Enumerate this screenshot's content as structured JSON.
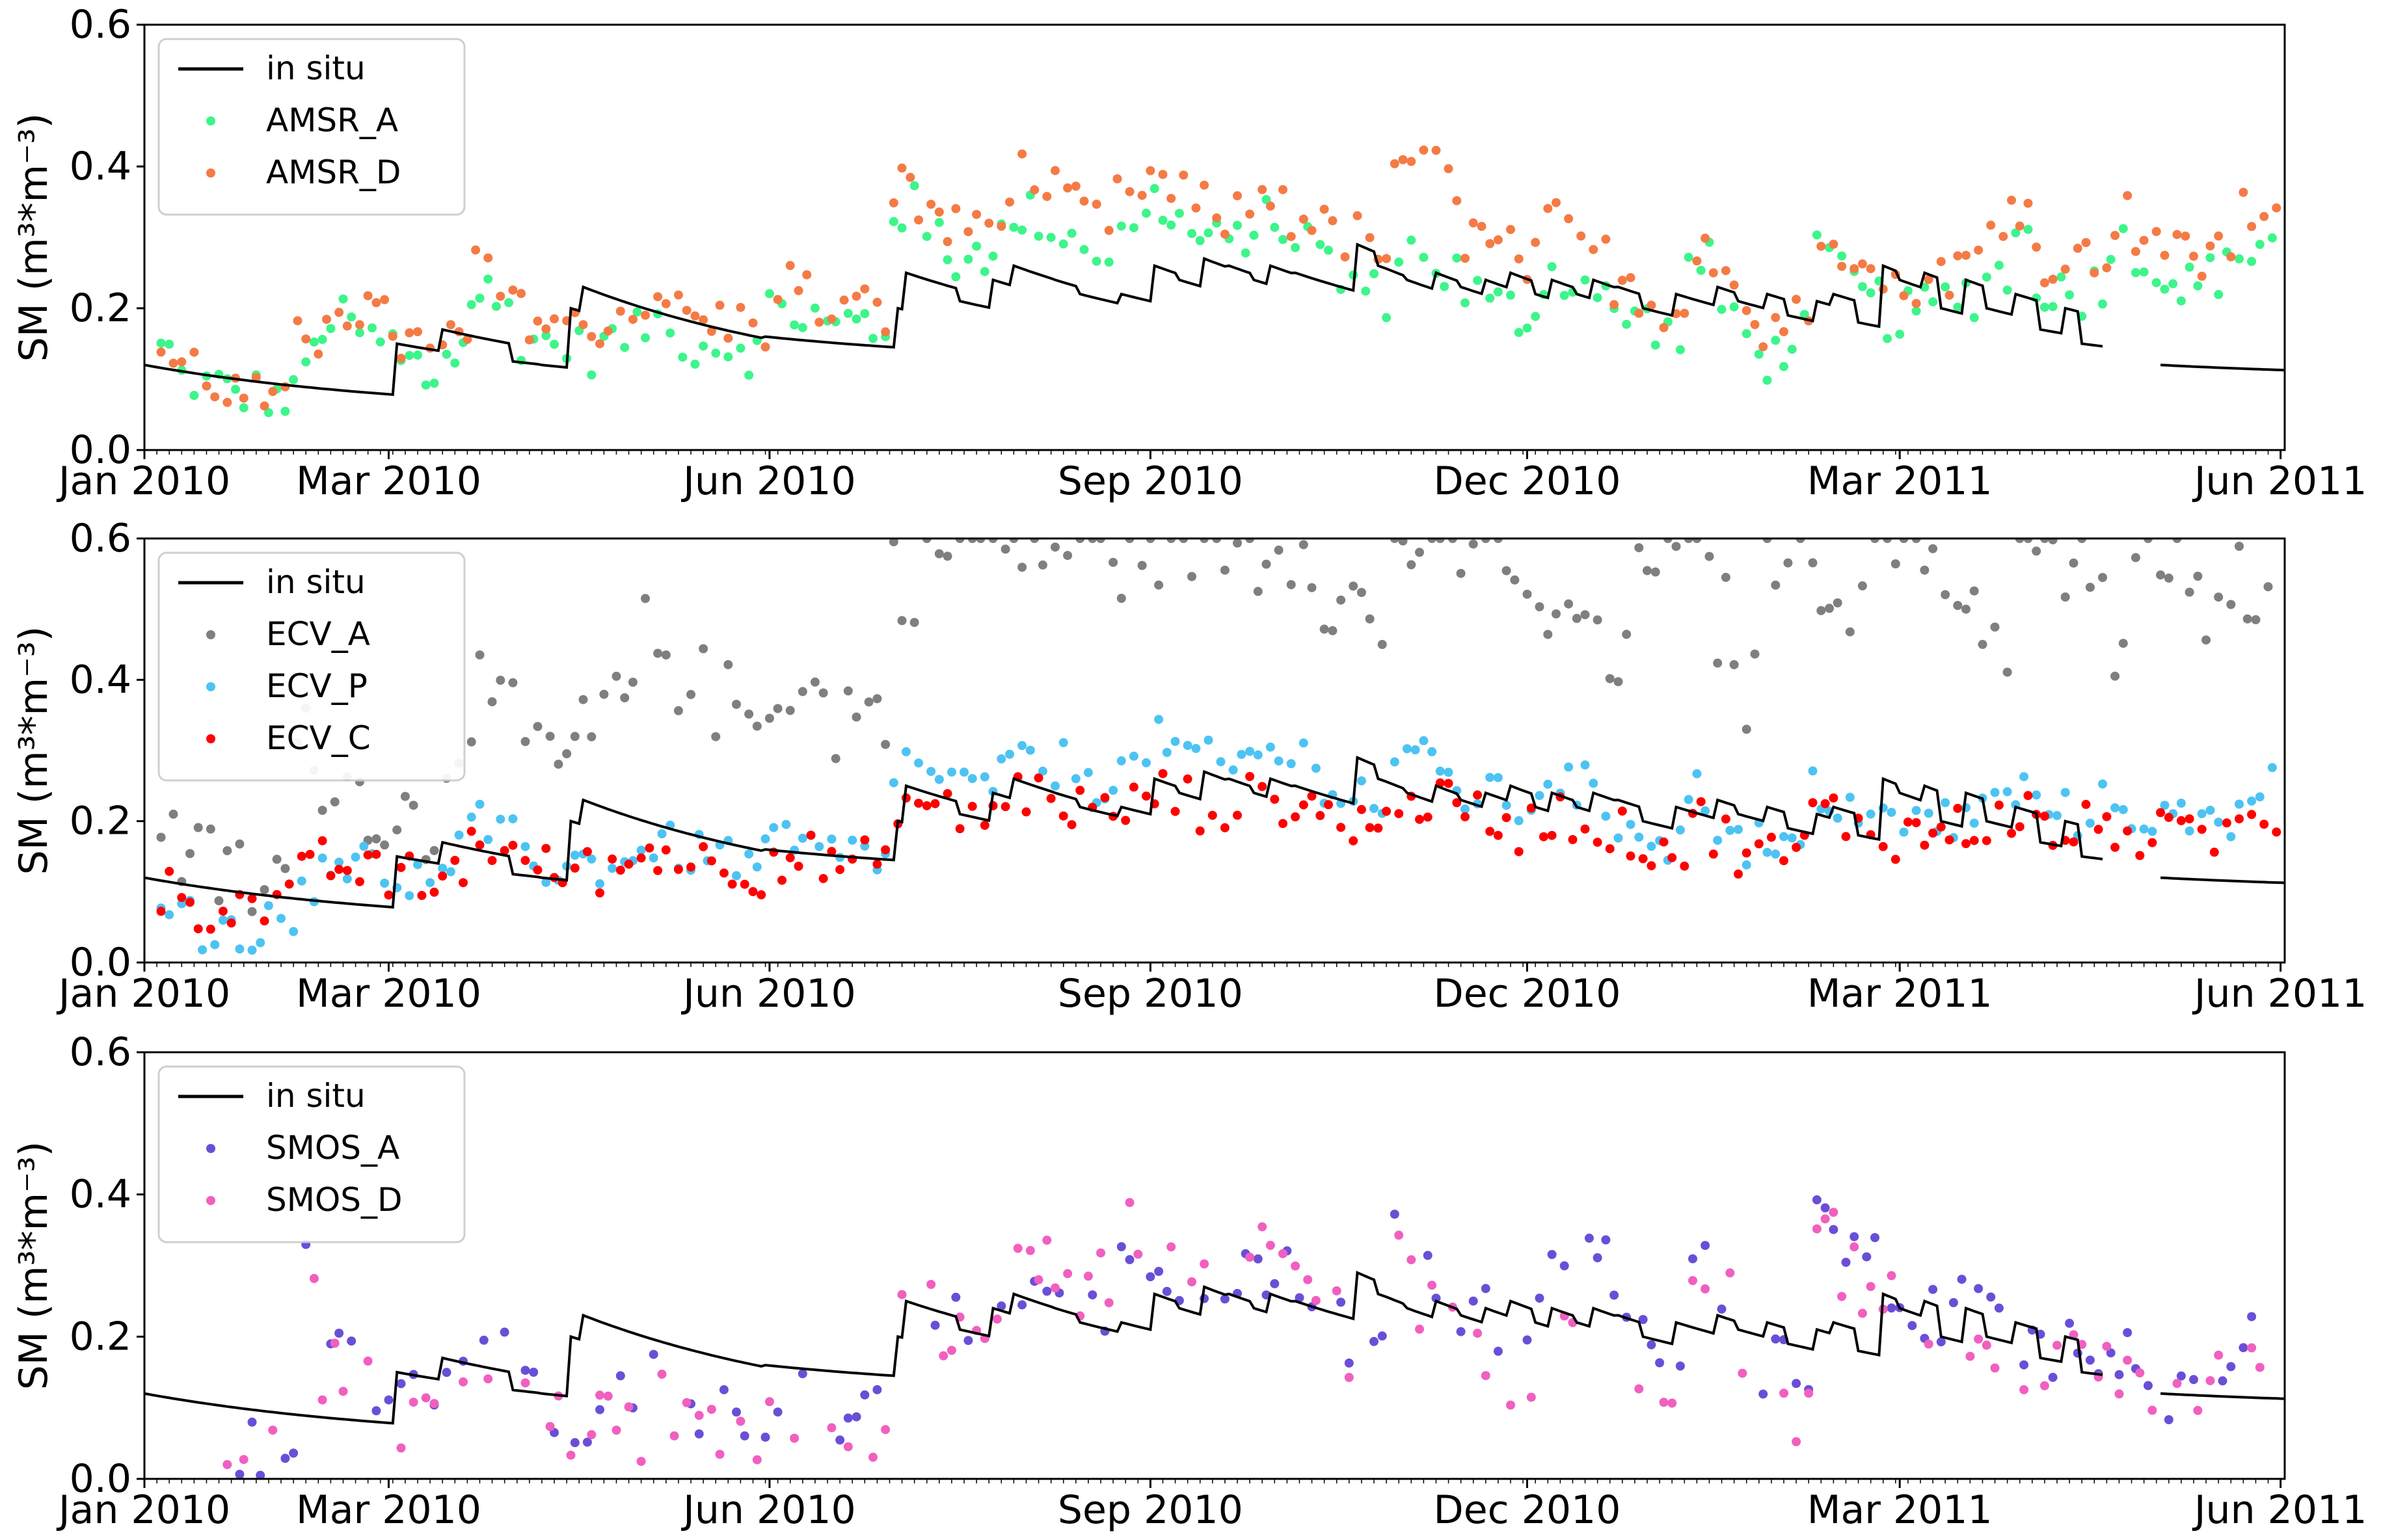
{
  "chart_data": [
    {
      "type": "line+scatter",
      "ylabel": "SM (m³*m⁻³)",
      "ylim": [
        0,
        0.6
      ],
      "yticks": [
        "0.0",
        "0.2",
        "0.4",
        "0.6"
      ],
      "xticks": [
        "Jan 2010",
        "Mar 2010",
        "Jun 2010",
        "Sep 2010",
        "Dec 2010",
        "Mar 2011",
        "Jun 2011"
      ],
      "x_range_days": [
        0,
        517
      ],
      "legend": {
        "position": "upper-left"
      },
      "series": [
        {
          "name": "in situ",
          "kind": "line",
          "color": "#000000"
        },
        {
          "name": "AMSR_A",
          "kind": "scatter",
          "color": "#3df58a",
          "samples": [
            0.14,
            0.1,
            0.09,
            0.08,
            0.08,
            0.07,
            0.13,
            0.18,
            0.17,
            0.15,
            0.12,
            0.1,
            0.14,
            0.22,
            0.2,
            0.16,
            0.15,
            0.14,
            0.15,
            0.16,
            0.18,
            0.16,
            0.15,
            0.15,
            0.14,
            0.2,
            0.19,
            0.17,
            0.18,
            0.17,
            0.34,
            0.3,
            0.27,
            0.28,
            0.3,
            0.33,
            0.31,
            0.3,
            0.28,
            0.3,
            0.35,
            0.32,
            0.3,
            0.29,
            0.31,
            0.32,
            0.3,
            0.27,
            0.24,
            0.22,
            0.28,
            0.27,
            0.25,
            0.22,
            0.2,
            0.19,
            0.25,
            0.24,
            0.21,
            0.19,
            0.18,
            0.16,
            0.26,
            0.2,
            0.15,
            0.13,
            0.17,
            0.27,
            0.24,
            0.21,
            0.19,
            0.2,
            0.21,
            0.22,
            0.25,
            0.3,
            0.23,
            0.22,
            0.24,
            0.29,
            0.27,
            0.24,
            0.23,
            0.25,
            0.28,
            0.3
          ]
        },
        {
          "name": "AMSR_D",
          "kind": "scatter",
          "color": "#f47b45",
          "samples": [
            0.14,
            0.12,
            0.1,
            0.08,
            0.07,
            0.06,
            0.15,
            0.21,
            0.2,
            0.18,
            0.15,
            0.13,
            0.16,
            0.25,
            0.22,
            0.19,
            0.18,
            0.17,
            0.18,
            0.19,
            0.22,
            0.19,
            0.18,
            0.18,
            0.17,
            0.24,
            0.22,
            0.2,
            0.2,
            0.19,
            0.37,
            0.34,
            0.31,
            0.32,
            0.35,
            0.39,
            0.36,
            0.34,
            0.32,
            0.35,
            0.38,
            0.36,
            0.34,
            0.33,
            0.35,
            0.36,
            0.33,
            0.31,
            0.3,
            0.28,
            0.38,
            0.42,
            0.37,
            0.3,
            0.28,
            0.26,
            0.32,
            0.3,
            0.27,
            0.24,
            0.22,
            0.2,
            0.3,
            0.25,
            0.19,
            0.16,
            0.21,
            0.32,
            0.29,
            0.25,
            0.22,
            0.24,
            0.25,
            0.27,
            0.3,
            0.35,
            0.27,
            0.26,
            0.28,
            0.33,
            0.31,
            0.28,
            0.27,
            0.29,
            0.33,
            0.35
          ]
        }
      ]
    },
    {
      "type": "line+scatter",
      "ylabel": "SM (m³*m⁻³)",
      "ylim": [
        0,
        0.6
      ],
      "yticks": [
        "0.0",
        "0.2",
        "0.4",
        "0.6"
      ],
      "xticks": [
        "Jan 2010",
        "Mar 2010",
        "Jun 2010",
        "Sep 2010",
        "Dec 2010",
        "Mar 2011",
        "Jun 2011"
      ],
      "x_range_days": [
        0,
        517
      ],
      "legend": {
        "position": "upper-left"
      },
      "series": [
        {
          "name": "in situ",
          "kind": "line",
          "color": "#000000"
        },
        {
          "name": "ECV_A",
          "kind": "scatter",
          "color": "#7f7f7f",
          "samples": [
            0.22,
            0.16,
            0.13,
            0.12,
            0.11,
            0.12,
            0.3,
            0.28,
            0.24,
            0.22,
            0.2,
            0.19,
            0.32,
            0.38,
            0.33,
            0.3,
            0.28,
            0.31,
            0.35,
            0.38,
            0.45,
            0.42,
            0.38,
            0.36,
            0.34,
            0.4,
            0.38,
            0.35,
            0.36,
            0.35,
            0.55,
            0.58,
            0.6,
            0.6,
            0.59,
            0.6,
            0.58,
            0.6,
            0.6,
            0.57,
            0.6,
            0.59,
            0.6,
            0.6,
            0.58,
            0.6,
            0.6,
            0.53,
            0.5,
            0.48,
            0.6,
            0.6,
            0.58,
            0.6,
            0.6,
            0.55,
            0.45,
            0.5,
            0.42,
            0.4,
            0.6,
            0.58,
            0.55,
            0.48,
            0.38,
            0.6,
            0.6,
            0.56,
            0.52,
            0.6,
            0.6,
            0.58,
            0.55,
            0.5,
            0.47,
            0.6,
            0.58,
            0.55,
            0.5,
            0.45,
            0.6,
            0.55,
            0.5,
            0.46,
            0.55,
            0.58
          ]
        },
        {
          "name": "ECV_P",
          "kind": "scatter",
          "color": "#4dc3f2",
          "samples": [
            0.1,
            0.06,
            0.05,
            0.05,
            0.05,
            0.05,
            0.12,
            0.15,
            0.14,
            0.13,
            0.12,
            0.11,
            0.15,
            0.19,
            0.17,
            0.15,
            0.14,
            0.14,
            0.14,
            0.15,
            0.17,
            0.16,
            0.15,
            0.15,
            0.14,
            0.17,
            0.16,
            0.15,
            0.15,
            0.14,
            0.28,
            0.27,
            0.25,
            0.24,
            0.26,
            0.29,
            0.28,
            0.27,
            0.26,
            0.27,
            0.31,
            0.3,
            0.28,
            0.27,
            0.29,
            0.3,
            0.29,
            0.26,
            0.24,
            0.22,
            0.3,
            0.28,
            0.26,
            0.24,
            0.23,
            0.22,
            0.26,
            0.25,
            0.22,
            0.2,
            0.19,
            0.17,
            0.24,
            0.2,
            0.17,
            0.15,
            0.17,
            0.24,
            0.22,
            0.2,
            0.19,
            0.2,
            0.2,
            0.21,
            0.23,
            0.24,
            0.22,
            0.21,
            0.22,
            0.22,
            0.21,
            0.2,
            0.19,
            0.2,
            0.24,
            0.26
          ]
        },
        {
          "name": "ECV_C",
          "kind": "scatter",
          "color": "#ff0000",
          "samples": [
            0.1,
            0.09,
            0.08,
            0.08,
            0.08,
            0.08,
            0.12,
            0.14,
            0.13,
            0.12,
            0.12,
            0.11,
            0.14,
            0.17,
            0.15,
            0.14,
            0.13,
            0.13,
            0.13,
            0.14,
            0.16,
            0.15,
            0.14,
            0.14,
            0.13,
            0.15,
            0.15,
            0.14,
            0.14,
            0.13,
            0.23,
            0.22,
            0.21,
            0.21,
            0.22,
            0.24,
            0.23,
            0.22,
            0.21,
            0.22,
            0.24,
            0.23,
            0.22,
            0.22,
            0.23,
            0.23,
            0.22,
            0.21,
            0.2,
            0.19,
            0.24,
            0.23,
            0.22,
            0.21,
            0.2,
            0.19,
            0.21,
            0.2,
            0.19,
            0.18,
            0.17,
            0.16,
            0.2,
            0.18,
            0.16,
            0.15,
            0.16,
            0.21,
            0.2,
            0.19,
            0.18,
            0.18,
            0.19,
            0.19,
            0.2,
            0.21,
            0.19,
            0.18,
            0.19,
            0.19,
            0.18,
            0.18,
            0.17,
            0.18,
            0.2,
            0.2
          ]
        }
      ]
    },
    {
      "type": "line+scatter",
      "ylabel": "SM (m³*m⁻³)",
      "ylim": [
        0,
        0.6
      ],
      "yticks": [
        "0.0",
        "0.2",
        "0.4",
        "0.6"
      ],
      "xticks": [
        "Jan 2010",
        "Mar 2010",
        "Jun 2010",
        "Sep 2010",
        "Dec 2010",
        "Mar 2011",
        "Jun 2011"
      ],
      "x_range_days": [
        0,
        517
      ],
      "legend": {
        "position": "upper-left"
      },
      "series": [
        {
          "name": "in situ",
          "kind": "line",
          "color": "#000000"
        },
        {
          "name": "SMOS_A",
          "kind": "scatter",
          "color": "#6a4fd6",
          "samples": [
            0.05,
            0.04,
            0.03,
            0.03,
            0.03,
            0.04,
            0.3,
            0.2,
            0.17,
            0.14,
            0.12,
            0.1,
            0.14,
            0.2,
            0.17,
            0.13,
            0.1,
            0.09,
            0.11,
            0.1,
            0.13,
            0.12,
            0.11,
            0.1,
            0.09,
            0.1,
            0.11,
            0.1,
            0.09,
            0.1,
            0.27,
            0.25,
            0.21,
            0.2,
            0.22,
            0.26,
            0.24,
            0.23,
            0.25,
            0.28,
            0.33,
            0.3,
            0.28,
            0.26,
            0.28,
            0.3,
            0.27,
            0.24,
            0.2,
            0.18,
            0.34,
            0.28,
            0.25,
            0.22,
            0.2,
            0.18,
            0.27,
            0.28,
            0.3,
            0.25,
            0.2,
            0.18,
            0.32,
            0.28,
            0.22,
            0.16,
            0.12,
            0.35,
            0.31,
            0.3,
            0.28,
            0.22,
            0.2,
            0.24,
            0.22,
            0.2,
            0.18,
            0.2,
            0.17,
            0.16,
            0.14,
            0.13,
            0.12,
            0.14,
            0.2,
            0.18
          ]
        },
        {
          "name": "SMOS_D",
          "kind": "scatter",
          "color": "#f060c0",
          "samples": [
            0.04,
            0.03,
            0.02,
            0.03,
            0.02,
            0.03,
            0.24,
            0.15,
            0.12,
            0.1,
            0.08,
            0.07,
            0.1,
            0.18,
            0.14,
            0.1,
            0.07,
            0.06,
            0.08,
            0.07,
            0.1,
            0.09,
            0.08,
            0.07,
            0.06,
            0.08,
            0.09,
            0.08,
            0.07,
            0.08,
            0.3,
            0.27,
            0.22,
            0.19,
            0.21,
            0.28,
            0.3,
            0.27,
            0.29,
            0.35,
            0.38,
            0.33,
            0.3,
            0.28,
            0.31,
            0.33,
            0.29,
            0.22,
            0.16,
            0.12,
            0.3,
            0.25,
            0.2,
            0.17,
            0.15,
            0.12,
            0.23,
            0.24,
            0.28,
            0.22,
            0.16,
            0.13,
            0.3,
            0.25,
            0.18,
            0.12,
            0.08,
            0.33,
            0.29,
            0.27,
            0.24,
            0.18,
            0.16,
            0.21,
            0.19,
            0.17,
            0.15,
            0.17,
            0.14,
            0.13,
            0.12,
            0.11,
            0.11,
            0.13,
            0.2,
            0.18
          ]
        }
      ]
    }
  ]
}
